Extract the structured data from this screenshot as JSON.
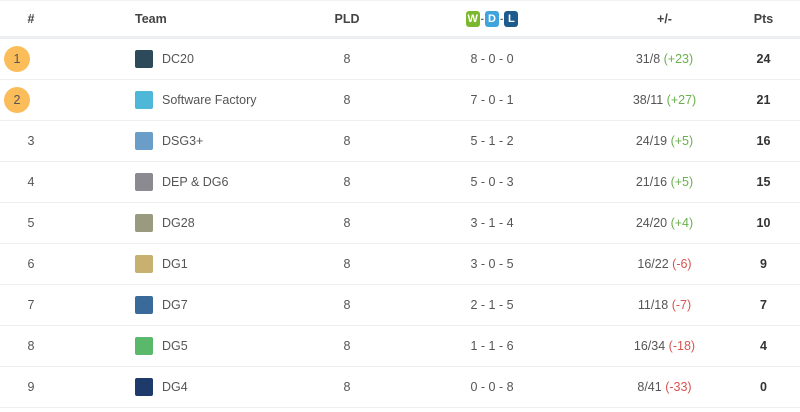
{
  "headers": {
    "rank": "#",
    "team": "Team",
    "pld": "PLD",
    "w": "W",
    "d": "D",
    "l": "L",
    "dash": "-",
    "gd": "+/-",
    "pts": "Pts"
  },
  "colors": {
    "win": "#7cb82f",
    "draw": "#3fa4dc",
    "loss": "#1d5a8e",
    "highlight": "#fbbd5a",
    "positive": "#6ab04c",
    "negative": "#d9534f"
  },
  "rows": [
    {
      "rank": "1",
      "team": "DC20",
      "pld": "8",
      "wdl": "8 - 0 - 0",
      "score": "31/8",
      "diff": "(+23)",
      "positive": true,
      "pts": "24",
      "highlight": true,
      "logo": "#2d4a5a"
    },
    {
      "rank": "2",
      "team": "Software Factory",
      "pld": "8",
      "wdl": "7 - 0 - 1",
      "score": "38/11",
      "diff": "(+27)",
      "positive": true,
      "pts": "21",
      "highlight": true,
      "logo": "#4fb8d8"
    },
    {
      "rank": "3",
      "team": "DSG3+",
      "pld": "8",
      "wdl": "5 - 1 - 2",
      "score": "24/19",
      "diff": "(+5)",
      "positive": true,
      "pts": "16",
      "highlight": false,
      "logo": "#6a9ec8"
    },
    {
      "rank": "4",
      "team": "DEP & DG6",
      "pld": "8",
      "wdl": "5 - 0 - 3",
      "score": "21/16",
      "diff": "(+5)",
      "positive": true,
      "pts": "15",
      "highlight": false,
      "logo": "#8a8a90"
    },
    {
      "rank": "5",
      "team": "DG28",
      "pld": "8",
      "wdl": "3 - 1 - 4",
      "score": "24/20",
      "diff": "(+4)",
      "positive": true,
      "pts": "10",
      "highlight": false,
      "logo": "#9a9a80"
    },
    {
      "rank": "6",
      "team": "DG1",
      "pld": "8",
      "wdl": "3 - 0 - 5",
      "score": "16/22",
      "diff": "(-6)",
      "positive": false,
      "pts": "9",
      "highlight": false,
      "logo": "#c8b070"
    },
    {
      "rank": "7",
      "team": "DG7",
      "pld": "8",
      "wdl": "2 - 1 - 5",
      "score": "11/18",
      "diff": "(-7)",
      "positive": false,
      "pts": "7",
      "highlight": false,
      "logo": "#3a6a9a"
    },
    {
      "rank": "8",
      "team": "DG5",
      "pld": "8",
      "wdl": "1 - 1 - 6",
      "score": "16/34",
      "diff": "(-18)",
      "positive": false,
      "pts": "4",
      "highlight": false,
      "logo": "#5ab86a"
    },
    {
      "rank": "9",
      "team": "DG4",
      "pld": "8",
      "wdl": "0 - 0 - 8",
      "score": "8/41",
      "diff": "(-33)",
      "positive": false,
      "pts": "0",
      "highlight": false,
      "logo": "#1d3a6a"
    }
  ]
}
